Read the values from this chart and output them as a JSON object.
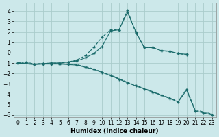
{
  "xlabel": "Humidex (Indice chaleur)",
  "bg_color": "#cce8ea",
  "grid_color": "#aacccc",
  "line_color": "#1a6b6b",
  "xlim": [
    -0.5,
    23.5
  ],
  "ylim": [
    -6.2,
    4.8
  ],
  "yticks": [
    -6,
    -5,
    -4,
    -3,
    -2,
    -1,
    0,
    1,
    2,
    3,
    4
  ],
  "xticks": [
    0,
    1,
    2,
    3,
    4,
    5,
    6,
    7,
    8,
    9,
    10,
    11,
    12,
    13,
    14,
    15,
    16,
    17,
    18,
    19,
    20,
    21,
    22,
    23
  ],
  "s1_x": [
    0,
    1,
    2,
    3,
    4,
    5,
    6,
    7,
    8,
    9,
    10,
    11,
    12,
    13,
    14,
    15,
    16,
    17,
    18,
    19,
    20
  ],
  "s1_y": [
    -1.0,
    -0.9,
    -1.1,
    -1.05,
    -1.0,
    -1.0,
    -0.9,
    -0.7,
    -0.3,
    0.5,
    1.5,
    2.2,
    2.2,
    4.1,
    1.9,
    0.5,
    0.5,
    0.2,
    0.1,
    -0.1,
    -0.2
  ],
  "s2_x": [
    0,
    2,
    3,
    4,
    5,
    6,
    7,
    8,
    9,
    10,
    11,
    12,
    13,
    14,
    15,
    16,
    17,
    18,
    19,
    20
  ],
  "s2_y": [
    -1.0,
    -1.1,
    -1.05,
    -1.0,
    -1.0,
    -0.9,
    -0.8,
    -0.5,
    -0.1,
    0.6,
    2.1,
    2.2,
    3.9,
    2.0,
    0.5,
    0.5,
    0.2,
    0.15,
    -0.1,
    -0.15
  ],
  "s3_x": [
    0,
    2,
    3,
    4,
    5,
    6,
    7,
    8,
    9,
    10,
    11,
    12,
    13,
    14,
    15,
    16,
    17,
    18,
    19,
    20,
    21,
    22,
    23
  ],
  "s3_y": [
    -1.0,
    -1.15,
    -1.1,
    -1.1,
    -1.1,
    -1.15,
    -1.2,
    -1.4,
    -1.6,
    -1.9,
    -2.2,
    -2.55,
    -2.9,
    -3.2,
    -3.5,
    -3.8,
    -4.1,
    -4.4,
    -4.75,
    -3.6,
    -5.6,
    -5.8,
    -6.0
  ],
  "s3b_x": [
    0,
    2,
    3,
    4,
    5,
    6,
    7,
    8,
    9,
    10,
    11,
    12,
    13,
    14,
    15,
    16,
    17,
    18,
    19,
    20,
    21,
    22,
    23
  ],
  "s3b_y": [
    -1.0,
    -1.1,
    -1.05,
    -1.05,
    -1.05,
    -1.1,
    -1.15,
    -1.35,
    -1.55,
    -1.85,
    -2.15,
    -2.5,
    -2.85,
    -3.15,
    -3.45,
    -3.75,
    -4.05,
    -4.35,
    -4.7,
    -3.5,
    -5.5,
    -5.7,
    -5.9
  ]
}
